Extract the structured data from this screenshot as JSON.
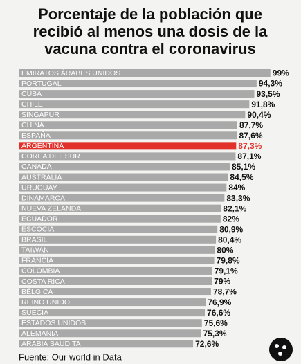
{
  "chart_data": {
    "type": "bar",
    "orientation": "horizontal",
    "title_lines": [
      "Porcentaje de la población que",
      "recibió al menos una dosis de la",
      "vacuna contra el coronavirus"
    ],
    "categories": [
      "EMIRATOS ÁRABES UNIDOS",
      "PORTUGAL",
      "CUBA",
      "CHILE",
      "SINGAPUR",
      "CHINA",
      "ESPAÑA",
      "ARGENTINA",
      "COREA DEL SUR",
      "CANADÁ",
      "AUSTRALIA",
      "URUGUAY",
      "DINAMARCA",
      "NUEVA ZELANDA",
      "ECUADOR",
      "ESCOCIA",
      "BRASIL",
      "TAIWAN",
      "FRANCIA",
      "COLOMBIA",
      "COSTA RICA",
      "BÉLGICA",
      "REINO UNIDO",
      "SUECIA",
      "ESTADOS UNIDOS",
      "ALEMANIA",
      "ARABIA SAUDITA"
    ],
    "values": [
      99,
      94.3,
      93.5,
      91.8,
      90.4,
      87.7,
      87.6,
      87.3,
      87.1,
      85.1,
      84.5,
      84,
      83.3,
      82.1,
      82,
      80.9,
      80.4,
      80,
      79.8,
      79.1,
      79,
      78.7,
      76.9,
      76.6,
      75.6,
      75.3,
      72.6
    ],
    "value_labels": [
      "99%",
      "94,3%",
      "93,5%",
      "91,8%",
      "90,4%",
      "87,7%",
      "87,6%",
      "87,3%",
      "87,1%",
      "85,1%",
      "84,5%",
      "84%",
      "83,3%",
      "82,1%",
      "82%",
      "80,9%",
      "80,4%",
      "80%",
      "79,8%",
      "79,1%",
      "79%",
      "78,7%",
      "76,9%",
      "76,6%",
      "75,6%",
      "75,3%",
      "72,6%"
    ],
    "colors": [
      "#a9a9a9",
      "#a9a9a9",
      "#a9a9a9",
      "#a9a9a9",
      "#a9a9a9",
      "#a9a9a9",
      "#a9a9a9",
      "#e2312a",
      "#a9a9a9",
      "#a9a9a9",
      "#a9a9a9",
      "#a9a9a9",
      "#a9a9a9",
      "#a9a9a9",
      "#a9a9a9",
      "#a9a9a9",
      "#a9a9a9",
      "#a9a9a9",
      "#a9a9a9",
      "#a9a9a9",
      "#a9a9a9",
      "#a9a9a9",
      "#a9a9a9",
      "#a9a9a9",
      "#a9a9a9",
      "#a9a9a9",
      "#a9a9a9"
    ],
    "xlim": [
      13,
      100
    ],
    "source": "Fuente: Our world in Data"
  }
}
